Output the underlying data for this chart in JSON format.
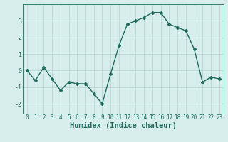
{
  "title": "",
  "xlabel": "Humidex (Indice chaleur)",
  "ylabel": "",
  "x_values": [
    0,
    1,
    2,
    3,
    4,
    5,
    6,
    7,
    8,
    9,
    10,
    11,
    12,
    13,
    14,
    15,
    16,
    17,
    18,
    19,
    20,
    21,
    22,
    23
  ],
  "y_values": [
    0.0,
    -0.6,
    0.2,
    -0.5,
    -1.2,
    -0.7,
    -0.8,
    -0.8,
    -1.4,
    -2.0,
    -0.2,
    1.5,
    2.8,
    3.0,
    3.2,
    3.5,
    3.5,
    2.8,
    2.6,
    2.4,
    1.3,
    -0.7,
    -0.4,
    -0.5
  ],
  "line_color": "#1e6b5e",
  "marker": "D",
  "marker_size": 2.0,
  "background_color": "#d7edeb",
  "grid_color": "#b8d8d5",
  "ylim": [
    -2.6,
    4.0
  ],
  "xlim": [
    -0.5,
    23.5
  ],
  "yticks": [
    -2,
    -1,
    0,
    1,
    2,
    3
  ],
  "xticks": [
    0,
    1,
    2,
    3,
    4,
    5,
    6,
    7,
    8,
    9,
    10,
    11,
    12,
    13,
    14,
    15,
    16,
    17,
    18,
    19,
    20,
    21,
    22,
    23
  ],
  "tick_label_fontsize": 5.5,
  "xlabel_fontsize": 7.5,
  "line_width": 1.0
}
